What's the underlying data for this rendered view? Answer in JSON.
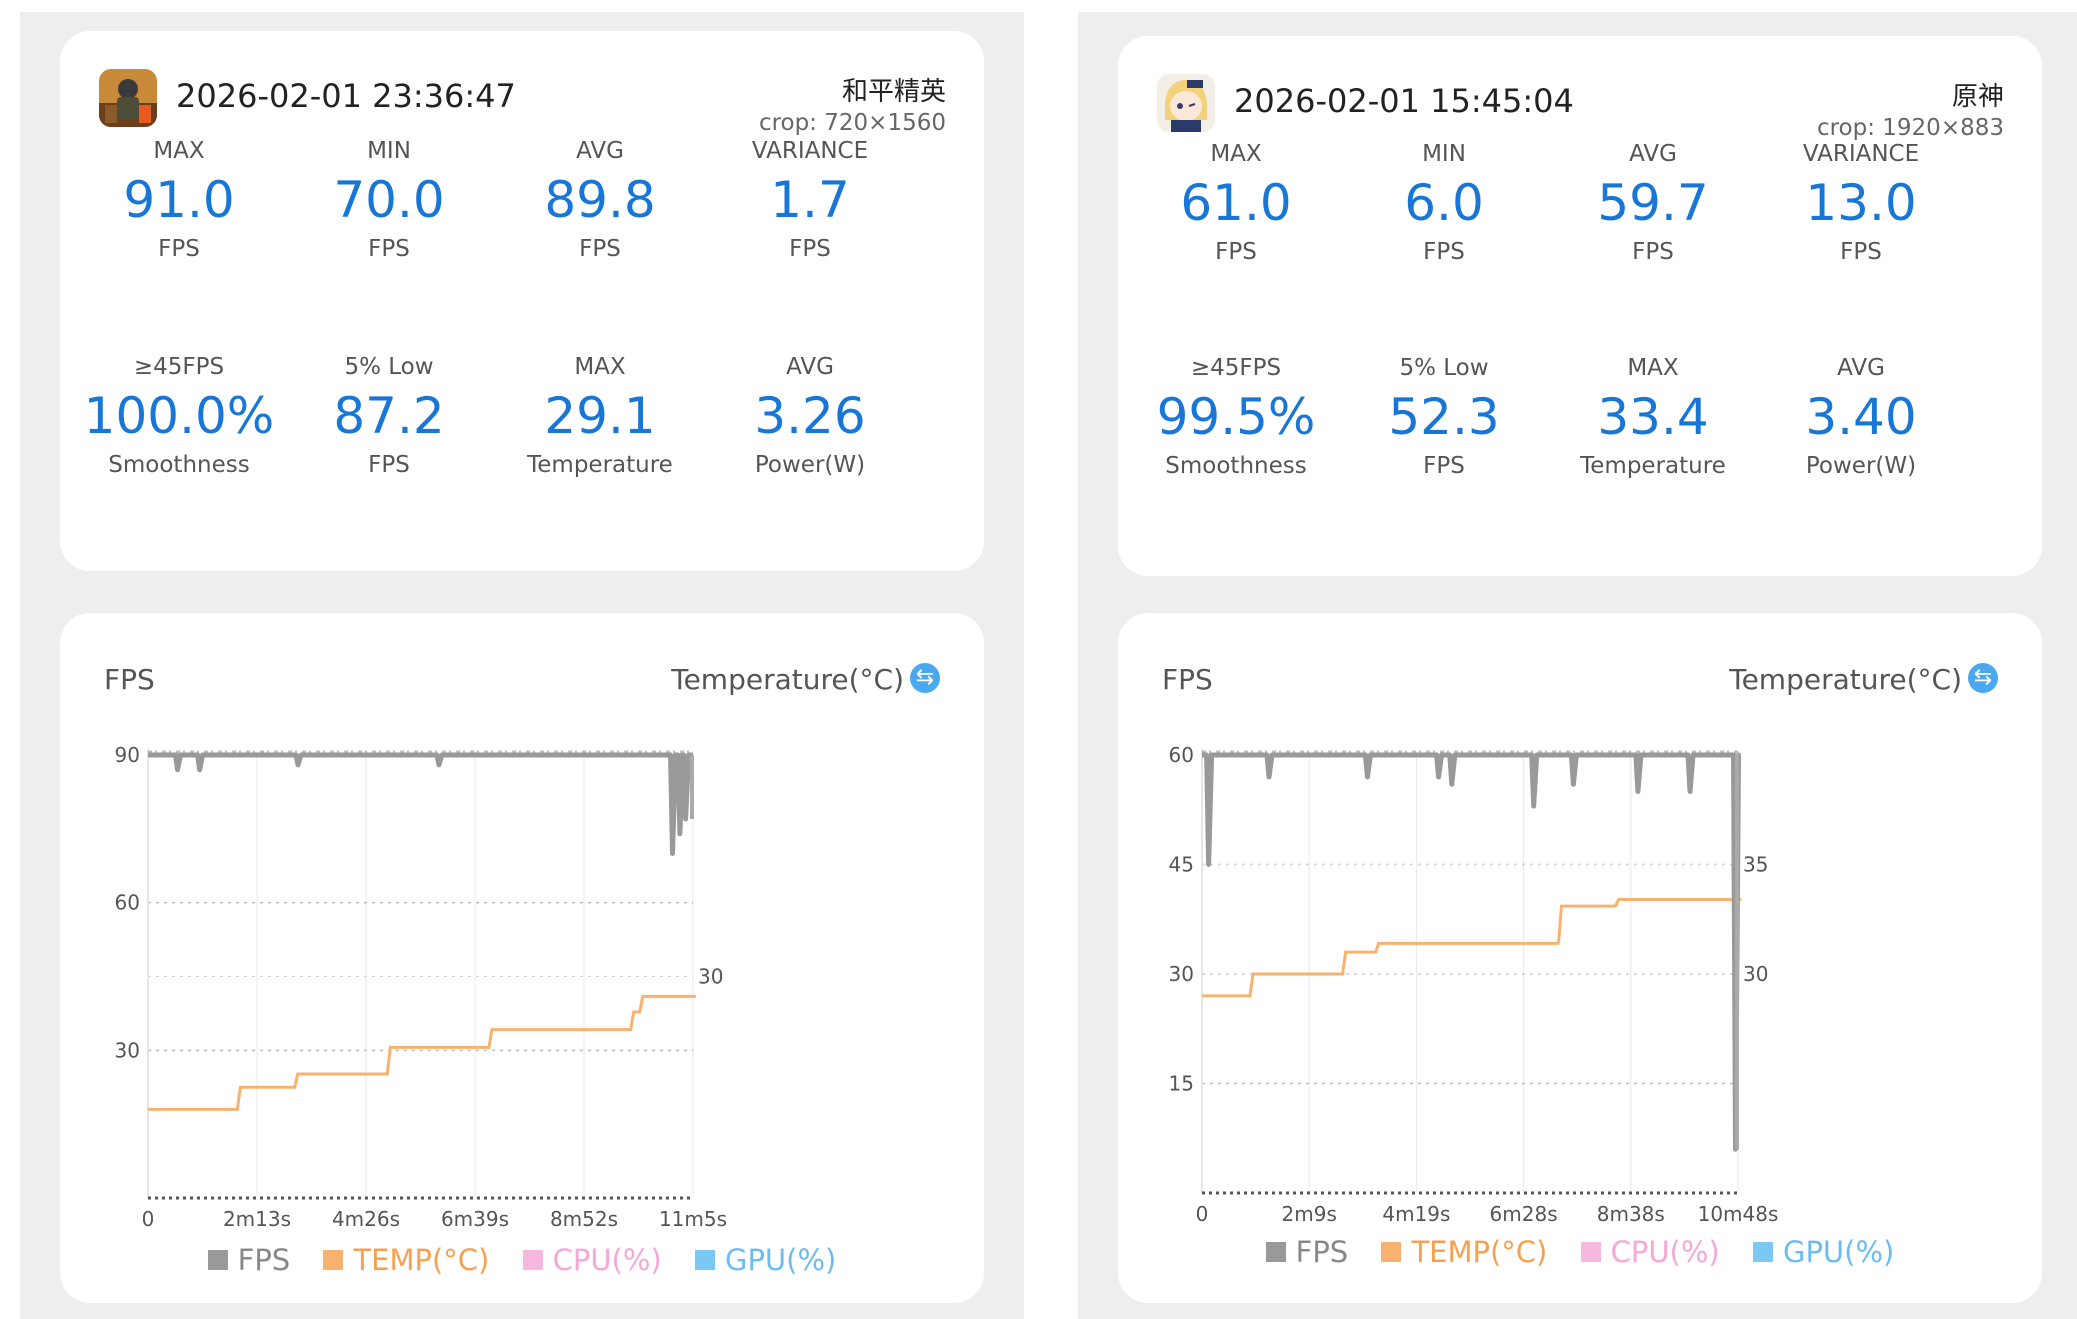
{
  "sessions": [
    {
      "date": "2026-02-01 23:36:47",
      "game": "和平精英",
      "crop": "crop: 720×1560",
      "icon": "game-icon-soldier",
      "stats": [
        {
          "label": "MAX",
          "value": "91.0",
          "unit": "FPS"
        },
        {
          "label": "MIN",
          "value": "70.0",
          "unit": "FPS"
        },
        {
          "label": "AVG",
          "value": "89.8",
          "unit": "FPS"
        },
        {
          "label": "VARIANCE",
          "value": "1.7",
          "unit": "FPS"
        },
        {
          "label": "≥45FPS",
          "value": "100.0%",
          "unit": "Smoothness"
        },
        {
          "label": "5% Low",
          "value": "87.2",
          "unit": "FPS"
        },
        {
          "label": "MAX",
          "value": "29.1",
          "unit": "Temperature"
        },
        {
          "label": "AVG",
          "value": "3.26",
          "unit": "Power(W)"
        }
      ],
      "chart_title": "FPS",
      "temp_title": "Temperature(°C)",
      "swap_icon": "swap-icon"
    },
    {
      "date": "2026-02-01 15:45:04",
      "game": "原神",
      "crop": "crop: 1920×883",
      "icon": "game-icon-anime",
      "stats": [
        {
          "label": "MAX",
          "value": "61.0",
          "unit": "FPS"
        },
        {
          "label": "MIN",
          "value": "6.0",
          "unit": "FPS"
        },
        {
          "label": "AVG",
          "value": "59.7",
          "unit": "FPS"
        },
        {
          "label": "VARIANCE",
          "value": "13.0",
          "unit": "FPS"
        },
        {
          "label": "≥45FPS",
          "value": "99.5%",
          "unit": "Smoothness"
        },
        {
          "label": "5% Low",
          "value": "52.3",
          "unit": "FPS"
        },
        {
          "label": "MAX",
          "value": "33.4",
          "unit": "Temperature"
        },
        {
          "label": "AVG",
          "value": "3.40",
          "unit": "Power(W)"
        }
      ],
      "chart_title": "FPS",
      "temp_title": "Temperature(°C)",
      "swap_icon": "swap-icon"
    }
  ],
  "legend": [
    {
      "label": "FPS",
      "color": "#999999"
    },
    {
      "label": "TEMP(°C)",
      "color": "#f7b26f"
    },
    {
      "label": "CPU(%)",
      "color": "#f7b8e0"
    },
    {
      "label": "GPU(%)",
      "color": "#7cc8f5"
    }
  ],
  "chart_data": [
    {
      "type": "line",
      "title": "FPS",
      "ylabel": "FPS",
      "y2label": "Temperature(°C)",
      "ylim": [
        0,
        90
      ],
      "y_ticks": [
        "90",
        "60",
        "30"
      ],
      "y2_ticks": [
        "30"
      ],
      "x_ticks": [
        "0",
        "2m13s",
        "4m26s",
        "6m39s",
        "8m52s",
        "11m5s"
      ],
      "total_s": 665,
      "fps_base": 90,
      "fps_dips": [
        [
          36,
          87
        ],
        [
          63,
          87
        ],
        [
          183,
          88
        ],
        [
          355,
          88
        ],
        [
          640,
          70
        ],
        [
          649,
          74
        ],
        [
          656,
          77
        ]
      ],
      "temp_ylim": [
        20,
        40
      ],
      "temp_steps": [
        [
          0,
          24
        ],
        [
          109,
          25
        ],
        [
          179,
          25.6
        ],
        [
          292,
          26.8
        ],
        [
          416,
          27.6
        ],
        [
          589,
          28.4
        ],
        [
          600,
          29.1
        ],
        [
          665,
          29.1
        ]
      ],
      "series": [
        {
          "name": "FPS",
          "color": "#999999"
        },
        {
          "name": "TEMP(°C)",
          "color": "#f7b26f"
        }
      ]
    },
    {
      "type": "line",
      "title": "FPS",
      "ylabel": "FPS",
      "y2label": "Temperature(°C)",
      "ylim": [
        0,
        60
      ],
      "y_ticks": [
        "60",
        "45",
        "30",
        "15"
      ],
      "y2_ticks": [
        "35",
        "30"
      ],
      "x_ticks": [
        "0",
        "2m9s",
        "4m19s",
        "6m28s",
        "8m38s",
        "10m48s"
      ],
      "total_s": 648,
      "fps_base": 60,
      "fps_dips": [
        [
          8,
          45
        ],
        [
          81,
          57
        ],
        [
          200,
          57
        ],
        [
          286,
          57
        ],
        [
          302,
          56
        ],
        [
          401,
          53
        ],
        [
          449,
          56
        ],
        [
          527,
          55
        ],
        [
          590,
          55
        ],
        [
          645,
          6
        ]
      ],
      "temp_ylim": [
        20,
        40
      ],
      "temp_steps": [
        [
          0,
          29
        ],
        [
          58,
          30
        ],
        [
          170,
          31
        ],
        [
          210,
          31.4
        ],
        [
          428,
          31.4
        ],
        [
          431,
          33.1
        ],
        [
          500,
          33.4
        ],
        [
          648,
          33.4
        ]
      ],
      "series": [
        {
          "name": "FPS",
          "color": "#999999"
        },
        {
          "name": "TEMP(°C)",
          "color": "#f7b26f"
        }
      ]
    }
  ]
}
